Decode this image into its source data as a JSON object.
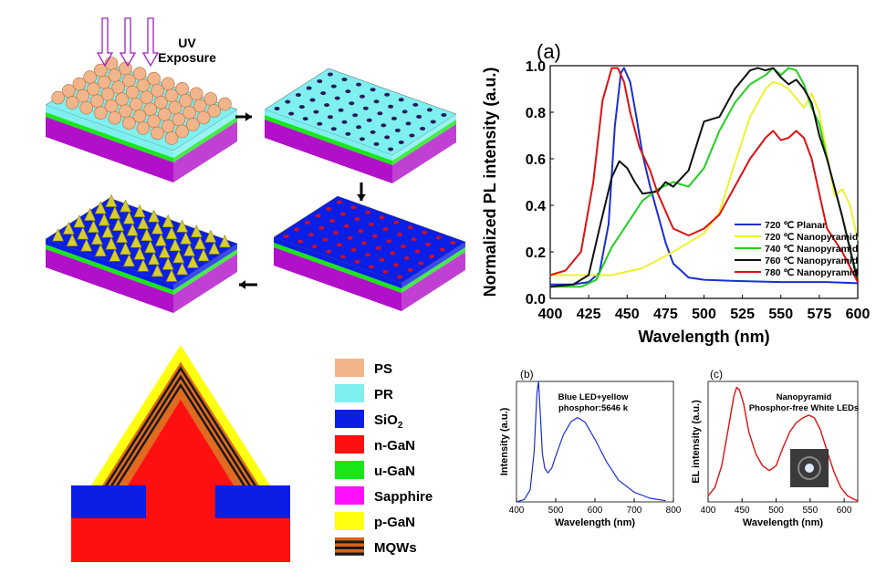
{
  "process": {
    "uv_line1": "UV",
    "uv_line2": "Exposure"
  },
  "legend": {
    "items": [
      {
        "label": "PS",
        "color": "#f2b48a"
      },
      {
        "label": "PR",
        "color": "#7ff0f0"
      },
      {
        "label": "SiO",
        "sub": "2",
        "color": "#0a1ee6"
      },
      {
        "label": "n-GaN",
        "color": "#ff1010"
      },
      {
        "label": "u-GaN",
        "color": "#19e619"
      },
      {
        "label": "Sapphire",
        "color": "#ff10ff"
      },
      {
        "label": "p-GaN",
        "color": "#ffff10"
      },
      {
        "label": "MQWs",
        "color": "#e06010"
      }
    ]
  },
  "colors": {
    "ps": "#f2b48a",
    "pr": "#7ff0f0",
    "sio2": "#0a1ee6",
    "ngan": "#ff1010",
    "ugan": "#19e619",
    "sapphire": "#b010c8",
    "pgan": "#ffff10",
    "pyramid": "#d6cf2a",
    "hole": "#2a1a5a",
    "redhole": "#c8102a"
  },
  "chart_data": [
    {
      "panel": "(a)",
      "type": "line",
      "xlabel": "Wavelength (nm)",
      "ylabel": "Normalized PL intensity (a.u.)",
      "xlim": [
        400,
        600
      ],
      "ylim": [
        0.0,
        1.0
      ],
      "xticks": [
        "400",
        "425",
        "450",
        "475",
        "500",
        "525",
        "550",
        "575",
        "600"
      ],
      "yticks": [
        "0.0",
        "0.2",
        "0.4",
        "0.6",
        "0.8",
        "1.0"
      ],
      "series": [
        {
          "name": "720 ℃  Planar",
          "color": "#1a2fd0",
          "x": [
            400,
            415,
            425,
            432,
            438,
            442,
            446,
            448,
            452,
            456,
            460,
            465,
            470,
            475,
            480,
            490,
            500,
            520,
            550,
            580,
            600
          ],
          "y": [
            0.06,
            0.06,
            0.07,
            0.11,
            0.32,
            0.74,
            0.97,
            0.99,
            0.93,
            0.78,
            0.62,
            0.48,
            0.36,
            0.24,
            0.15,
            0.09,
            0.08,
            0.075,
            0.07,
            0.07,
            0.065
          ]
        },
        {
          "name": "720 ℃  Nanopyramid",
          "color": "#f0f030",
          "x": [
            400,
            420,
            440,
            460,
            480,
            500,
            510,
            520,
            530,
            540,
            545,
            550,
            555,
            560,
            565,
            570,
            575,
            580,
            585,
            590,
            595,
            600
          ],
          "y": [
            0.1,
            0.1,
            0.1,
            0.13,
            0.2,
            0.28,
            0.37,
            0.58,
            0.78,
            0.9,
            0.93,
            0.92,
            0.9,
            0.86,
            0.82,
            0.88,
            0.8,
            0.62,
            0.44,
            0.47,
            0.4,
            0.25
          ]
        },
        {
          "name": "740 ℃  Nanopyramid",
          "color": "#20d020",
          "x": [
            400,
            420,
            430,
            440,
            450,
            460,
            470,
            480,
            490,
            500,
            510,
            520,
            530,
            540,
            545,
            550,
            555,
            560,
            565,
            570,
            575,
            580,
            590,
            600
          ],
          "y": [
            0.05,
            0.05,
            0.08,
            0.22,
            0.32,
            0.42,
            0.47,
            0.5,
            0.48,
            0.56,
            0.72,
            0.84,
            0.92,
            0.96,
            0.99,
            0.96,
            0.99,
            0.98,
            0.92,
            0.82,
            0.75,
            0.6,
            0.35,
            0.08
          ]
        },
        {
          "name": "760 ℃  Nanopyramid",
          "color": "#101010",
          "x": [
            400,
            415,
            425,
            432,
            440,
            445,
            450,
            455,
            460,
            470,
            475,
            480,
            490,
            500,
            510,
            520,
            530,
            535,
            540,
            545,
            550,
            555,
            560,
            565,
            570,
            575,
            580,
            590,
            600
          ],
          "y": [
            0.05,
            0.06,
            0.1,
            0.3,
            0.52,
            0.59,
            0.56,
            0.5,
            0.45,
            0.46,
            0.5,
            0.48,
            0.55,
            0.76,
            0.78,
            0.9,
            0.98,
            0.99,
            0.98,
            0.99,
            0.95,
            0.92,
            0.94,
            0.9,
            0.84,
            0.7,
            0.6,
            0.35,
            0.07
          ]
        },
        {
          "name": "780 ℃  Nanopyramid",
          "color": "#e01010",
          "x": [
            400,
            410,
            420,
            428,
            434,
            440,
            444,
            448,
            452,
            458,
            465,
            470,
            480,
            490,
            500,
            510,
            520,
            530,
            540,
            545,
            550,
            555,
            560,
            565,
            570,
            575,
            580,
            590,
            600
          ],
          "y": [
            0.1,
            0.12,
            0.2,
            0.5,
            0.85,
            0.99,
            0.99,
            0.93,
            0.8,
            0.65,
            0.55,
            0.45,
            0.3,
            0.27,
            0.3,
            0.36,
            0.48,
            0.6,
            0.69,
            0.72,
            0.68,
            0.69,
            0.72,
            0.69,
            0.6,
            0.45,
            0.3,
            0.2,
            0.07
          ]
        }
      ]
    },
    {
      "panel": "(b)",
      "type": "line",
      "xlabel": "Wavelength (nm)",
      "ylabel": "Intensity (a.u.)",
      "annotation": [
        "Blue LED+yellow",
        "phosphor:5646 k"
      ],
      "xlim": [
        400,
        800
      ],
      "ylim": [
        0,
        1
      ],
      "xticks": [
        "400",
        "500",
        "600",
        "700",
        "800"
      ],
      "series": [
        {
          "name": "Blue LED+yellow phosphor",
          "color": "#1a2fd0",
          "x": [
            400,
            420,
            435,
            445,
            452,
            456,
            460,
            466,
            472,
            480,
            490,
            500,
            520,
            540,
            556,
            575,
            600,
            630,
            660,
            700,
            740,
            780
          ],
          "y": [
            0.0,
            0.02,
            0.1,
            0.42,
            0.9,
            1.0,
            0.78,
            0.4,
            0.28,
            0.24,
            0.28,
            0.38,
            0.56,
            0.67,
            0.7,
            0.66,
            0.52,
            0.33,
            0.18,
            0.08,
            0.03,
            0.01
          ]
        }
      ]
    },
    {
      "panel": "(c)",
      "type": "line",
      "xlabel": "Wavelength (nm)",
      "ylabel": "EL intensity (a.u.)",
      "annotation": [
        "Nanopyramid",
        "Phosphor-free White LEDs"
      ],
      "xlim": [
        400,
        620
      ],
      "ylim": [
        0,
        1
      ],
      "xticks": [
        "400",
        "450",
        "500",
        "550",
        "600"
      ],
      "series": [
        {
          "name": "Nanopyramid EL",
          "color": "#e01010",
          "x": [
            400,
            410,
            420,
            430,
            438,
            442,
            446,
            452,
            460,
            470,
            480,
            490,
            500,
            510,
            520,
            530,
            540,
            548,
            556,
            565,
            575,
            585,
            595,
            605,
            615,
            620
          ],
          "y": [
            0.05,
            0.12,
            0.3,
            0.62,
            0.88,
            0.95,
            0.93,
            0.82,
            0.58,
            0.4,
            0.3,
            0.26,
            0.3,
            0.45,
            0.58,
            0.66,
            0.7,
            0.72,
            0.7,
            0.6,
            0.42,
            0.25,
            0.12,
            0.05,
            0.02,
            0.01
          ]
        }
      ]
    }
  ]
}
